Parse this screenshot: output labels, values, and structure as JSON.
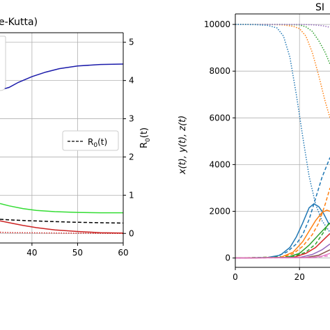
{
  "chart_data": [
    {
      "type": "line",
      "title_visible": "e-Kutta)",
      "x_ticks": [
        "40",
        "50",
        "60"
      ],
      "xlim": [
        33,
        60
      ],
      "y2_label": "R0(t)",
      "y2_ticks": [
        "0",
        "1",
        "2",
        "3",
        "4",
        "5"
      ],
      "y2lim": [
        -0.25,
        5.25
      ],
      "grid": true,
      "legend": {
        "placement": "right",
        "entries": [
          "R0(t)"
        ]
      },
      "series": [
        {
          "color": "#1a1aaa",
          "style": "solid",
          "x": [
            33,
            35,
            37,
            40,
            43,
            46,
            50,
            55,
            60
          ],
          "values": [
            3.75,
            3.82,
            3.95,
            4.1,
            4.22,
            4.31,
            4.38,
            4.42,
            4.43
          ]
        },
        {
          "color": "#33dd33",
          "style": "solid",
          "x": [
            33,
            35,
            38,
            41,
            45,
            50,
            55,
            60
          ],
          "values": [
            0.78,
            0.72,
            0.65,
            0.6,
            0.57,
            0.55,
            0.54,
            0.54
          ]
        },
        {
          "color": "#000000",
          "style": "dashed",
          "x": [
            33,
            36,
            40,
            45,
            50,
            55,
            60
          ],
          "values": [
            0.37,
            0.35,
            0.33,
            0.31,
            0.29,
            0.28,
            0.27
          ]
        },
        {
          "color": "#cc2222",
          "style": "solid",
          "x": [
            33,
            35,
            38,
            41,
            45,
            50,
            55,
            60
          ],
          "values": [
            0.33,
            0.28,
            0.21,
            0.15,
            0.09,
            0.05,
            0.02,
            0.01
          ]
        },
        {
          "color": "#cc2222",
          "style": "dotted",
          "x": [
            33,
            36,
            40,
            45,
            50,
            60
          ],
          "values": [
            0.03,
            0.02,
            0.015,
            0.01,
            0.005,
            0.0
          ]
        }
      ]
    },
    {
      "type": "line",
      "title_visible": "SI",
      "x_ticks": [
        "0",
        "20"
      ],
      "xlim": [
        0,
        29.5
      ],
      "y_ticks": [
        "0",
        "2000",
        "4000",
        "6000",
        "8000",
        "10000"
      ],
      "ylim": [
        -400,
        10450
      ],
      "ylabel": "x(t), y(t), z(t)",
      "grid": true,
      "series": [
        {
          "color": "#ff7f0e",
          "style": "dotted",
          "x": [
            0,
            10,
            15,
            18,
            20,
            22,
            24,
            26,
            28,
            29.5
          ],
          "values": [
            10000,
            10000,
            9980,
            9920,
            9820,
            9500,
            8800,
            7800,
            6700,
            6000
          ]
        },
        {
          "color": "#2ca02c",
          "style": "dotted",
          "x": [
            0,
            15,
            20,
            22,
            24,
            26,
            28,
            29.5
          ],
          "values": [
            10000,
            10000,
            9980,
            9900,
            9700,
            9300,
            8800,
            8300
          ]
        },
        {
          "color": "#9467bd",
          "style": "dotted",
          "x": [
            0,
            20,
            24,
            27,
            29.5
          ],
          "values": [
            10000,
            10000,
            9985,
            9950,
            9880
          ]
        },
        {
          "color": "#1f77b4",
          "style": "dotted",
          "x": [
            0,
            6,
            10,
            13,
            15,
            17,
            19,
            21,
            23,
            25,
            27,
            29.5
          ],
          "values": [
            10000,
            9990,
            9960,
            9850,
            9500,
            8600,
            7000,
            5200,
            3500,
            2300,
            1600,
            1100
          ]
        },
        {
          "color": "#1f77b4",
          "style": "dashed",
          "x": [
            0,
            12,
            16,
            19,
            21,
            23,
            25,
            27,
            29.5
          ],
          "values": [
            0,
            30,
            250,
            600,
            1000,
            1650,
            2550,
            3450,
            4300
          ]
        },
        {
          "color": "#ff7f0e",
          "style": "dashed",
          "x": [
            0,
            15,
            18,
            21,
            24,
            26,
            28,
            29.5
          ],
          "values": [
            0,
            50,
            180,
            500,
            1000,
            1500,
            2300,
            3000
          ]
        },
        {
          "color": "#2ca02c",
          "style": "dashed",
          "x": [
            0,
            18,
            22,
            25,
            28,
            29.5
          ],
          "values": [
            0,
            60,
            250,
            600,
            1200,
            1600
          ]
        },
        {
          "color": "#1f77b4",
          "style": "solid",
          "x": [
            0,
            10,
            14,
            17,
            19,
            21,
            23,
            24.5,
            26,
            27.5,
            29,
            29.5
          ],
          "values": [
            0,
            20,
            120,
            450,
            900,
            1500,
            2150,
            2320,
            2200,
            1900,
            1500,
            1450
          ]
        },
        {
          "color": "#ff7f0e",
          "style": "solid",
          "x": [
            0,
            14,
            18,
            21,
            23,
            25,
            27,
            28.5,
            29.5
          ],
          "values": [
            0,
            20,
            250,
            700,
            1150,
            1600,
            1950,
            2050,
            2000
          ]
        },
        {
          "color": "#2ca02c",
          "style": "solid",
          "x": [
            0,
            16,
            20,
            23,
            26,
            29.5
          ],
          "values": [
            0,
            20,
            200,
            550,
            1000,
            1500
          ]
        },
        {
          "color": "#d62728",
          "style": "solid",
          "x": [
            0,
            18,
            22,
            25,
            28,
            29.5
          ],
          "values": [
            0,
            20,
            200,
            450,
            850,
            1050
          ]
        },
        {
          "color": "#9467bd",
          "style": "solid",
          "x": [
            0,
            20,
            24,
            27,
            29.5
          ],
          "values": [
            0,
            20,
            150,
            350,
            600
          ]
        },
        {
          "color": "#8c564b",
          "style": "solid",
          "x": [
            0,
            22,
            26,
            29.5
          ],
          "values": [
            0,
            20,
            120,
            350
          ]
        },
        {
          "color": "#e377c2",
          "style": "solid",
          "x": [
            0,
            24,
            27,
            29.5
          ],
          "values": [
            0,
            20,
            80,
            200
          ]
        },
        {
          "color": "#e377c2",
          "style": "dashed",
          "x": [
            0,
            24,
            29.5
          ],
          "values": [
            0,
            10,
            100
          ]
        }
      ]
    }
  ]
}
